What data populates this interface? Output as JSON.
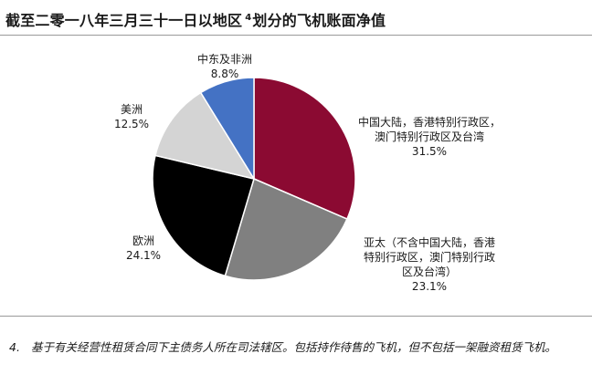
{
  "header": {
    "title_main": "截至二零一八年三月三十一日以地区",
    "title_ref": "4",
    "title_tail": "划分的飞机账面净值"
  },
  "footnote": {
    "number": "4.",
    "text": "基于有关经营性租赁合同下主债务人所在司法辖区。包括持作待售的飞机，但不包括一架融资租赁飞机。"
  },
  "chart_data": {
    "type": "pie",
    "start_angle_deg": 0,
    "direction": "clockwise",
    "slices": [
      {
        "label_lines": [
          "中国大陆，香港特别行政区，",
          "澳门特别行政区及台湾"
        ],
        "value": 31.5,
        "value_text": "31.5%",
        "color": "#8b0a32"
      },
      {
        "label_lines": [
          "亚太（不含中国大陆，香港",
          "特别行政区，澳门特别行政",
          "区及台湾）"
        ],
        "value": 23.1,
        "value_text": "23.1%",
        "color": "#808080"
      },
      {
        "label_lines": [
          "欧洲"
        ],
        "value": 24.1,
        "value_text": "24.1%",
        "color": "#000000"
      },
      {
        "label_lines": [
          "美洲"
        ],
        "value": 12.5,
        "value_text": "12.5%",
        "color": "#d4d4d4"
      },
      {
        "label_lines": [
          "中东及非洲"
        ],
        "value": 8.8,
        "value_text": "8.8%",
        "color": "#4472c4"
      }
    ]
  }
}
